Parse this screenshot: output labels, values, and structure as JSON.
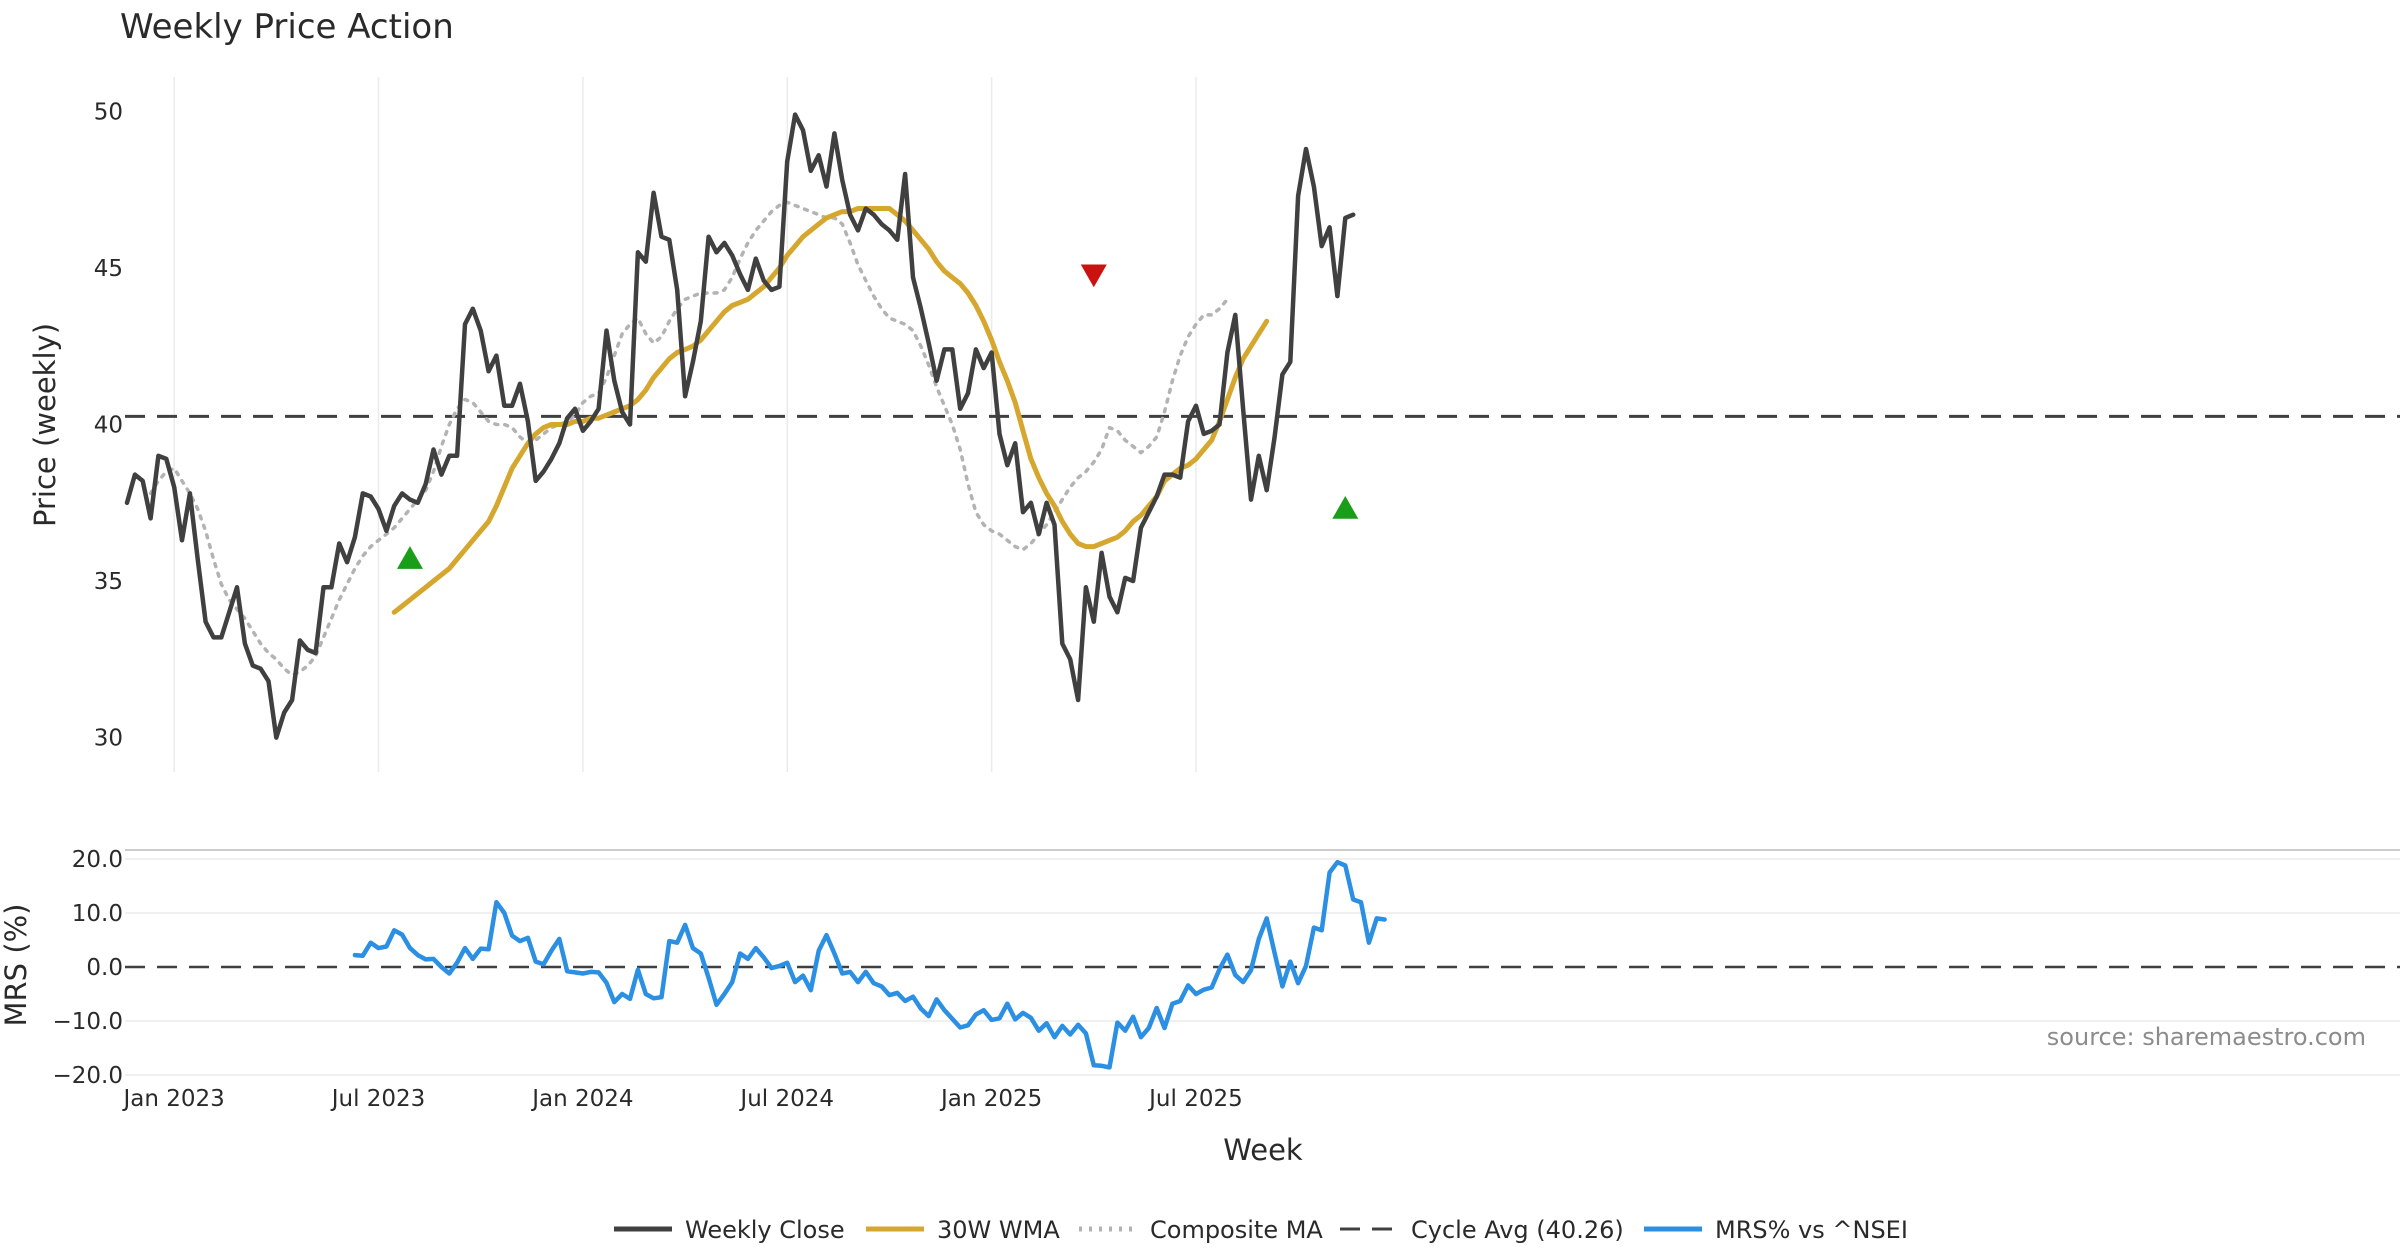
{
  "chart_data": {
    "type": "line",
    "title": "Weekly Price Action",
    "xlabel": "Week",
    "x_ticks": [
      "Jan 2023",
      "Jul 2023",
      "Jan 2024",
      "Jul 2024",
      "Jan 2025",
      "Jul 2025"
    ],
    "panels": [
      {
        "name": "price",
        "ylabel": "Price (weekly)",
        "yticks": [
          30,
          35,
          40,
          45,
          50
        ],
        "ylim": [
          28.9,
          51.1
        ],
        "series": [
          {
            "name": "Weekly Close",
            "color": "#404040",
            "style": "solid",
            "values": [
              37.5,
              38.4,
              38.2,
              37.0,
              39.0,
              38.9,
              38.0,
              36.3,
              37.8,
              35.7,
              33.7,
              33.2,
              33.2,
              34.0,
              34.8,
              33.0,
              32.3,
              32.2,
              31.8,
              30.0,
              30.8,
              31.2,
              33.1,
              32.8,
              32.7,
              34.8,
              34.8,
              36.2,
              35.6,
              36.4,
              37.8,
              37.7,
              37.3,
              36.6,
              37.4,
              37.8,
              37.6,
              37.5,
              38.1,
              39.2,
              38.4,
              39.0,
              39.0,
              43.2,
              43.7,
              43.0,
              41.7,
              42.2,
              40.6,
              40.6,
              41.3,
              40.1,
              38.2,
              38.5,
              38.9,
              39.4,
              40.2,
              40.5,
              39.8,
              40.1,
              40.5,
              43.0,
              41.4,
              40.4,
              40.0,
              45.5,
              45.2,
              47.4,
              46.0,
              45.9,
              44.3,
              40.9,
              42.0,
              43.3,
              46.0,
              45.5,
              45.8,
              45.4,
              44.8,
              44.3,
              45.3,
              44.6,
              44.3,
              44.4,
              48.4,
              49.9,
              49.4,
              48.1,
              48.6,
              47.6,
              49.3,
              47.8,
              46.7,
              46.2,
              46.9,
              46.7,
              46.4,
              46.2,
              45.9,
              48.0,
              44.7,
              43.7,
              42.6,
              41.4,
              42.4,
              42.4,
              40.5,
              41.0,
              42.4,
              41.8,
              42.3,
              39.7,
              38.7,
              39.4,
              37.2,
              37.5,
              36.5,
              37.5,
              36.8,
              33.0,
              32.5,
              31.2,
              34.8,
              33.7,
              35.9,
              34.5,
              34.0,
              35.1,
              35.0,
              36.7,
              37.2,
              37.7,
              38.4,
              38.4,
              38.3,
              40.1,
              40.6,
              39.7,
              39.8,
              40.0,
              42.3,
              43.5,
              40.5,
              37.6,
              39.0,
              37.9,
              39.6,
              41.6,
              42.0,
              47.3,
              48.8,
              47.6,
              45.7,
              46.3,
              44.1,
              46.6,
              46.7
            ]
          },
          {
            "name": "30W WMA",
            "color": "#d6a72e",
            "style": "solid",
            "start_index": 34,
            "values": [
              34.0,
              34.2,
              34.4,
              34.6,
              34.8,
              35.0,
              35.2,
              35.4,
              35.7,
              36.0,
              36.3,
              36.6,
              36.9,
              37.4,
              38.0,
              38.6,
              39.0,
              39.4,
              39.7,
              39.9,
              40.0,
              40.0,
              40.0,
              40.1,
              40.1,
              40.2,
              40.2,
              40.3,
              40.4,
              40.5,
              40.6,
              40.8,
              41.1,
              41.5,
              41.8,
              42.1,
              42.3,
              42.4,
              42.5,
              42.7,
              43.0,
              43.3,
              43.6,
              43.8,
              43.9,
              44.0,
              44.2,
              44.4,
              44.7,
              45.0,
              45.4,
              45.7,
              46.0,
              46.2,
              46.4,
              46.6,
              46.7,
              46.8,
              46.8,
              46.9,
              46.9,
              46.9,
              46.9,
              46.9,
              46.7,
              46.5,
              46.2,
              45.9,
              45.6,
              45.2,
              44.9,
              44.7,
              44.5,
              44.2,
              43.8,
              43.3,
              42.7,
              42.0,
              41.4,
              40.7,
              39.8,
              38.9,
              38.3,
              37.8,
              37.4,
              36.9,
              36.5,
              36.2,
              36.1,
              36.1,
              36.2,
              36.3,
              36.4,
              36.6,
              36.9,
              37.1,
              37.4,
              37.7,
              38.2,
              38.4,
              38.6,
              38.7,
              38.9,
              39.2,
              39.5,
              40.1,
              40.8,
              41.5,
              42.1,
              42.5,
              42.9,
              43.3
            ]
          },
          {
            "name": "Composite MA",
            "color": "#b3b3b3",
            "style": "dotted",
            "start_index": 3,
            "values": [
              37.8,
              38.2,
              38.5,
              38.6,
              38.2,
              37.8,
              37.3,
              36.6,
              35.7,
              34.9,
              34.4,
              34.1,
              33.8,
              33.4,
              33.0,
              32.7,
              32.5,
              32.2,
              32.0,
              32.1,
              32.3,
              32.6,
              33.2,
              33.8,
              34.4,
              34.9,
              35.4,
              35.8,
              36.1,
              36.3,
              36.5,
              36.7,
              37.0,
              37.3,
              37.6,
              37.9,
              38.5,
              39.3,
              40.0,
              40.5,
              40.8,
              40.7,
              40.4,
              40.1,
              40.0,
              40.0,
              39.9,
              39.6,
              39.4,
              39.5,
              39.7,
              39.9,
              40.0,
              40.1,
              40.3,
              40.7,
              40.9,
              41.0,
              41.5,
              42.2,
              42.9,
              43.2,
              43.4,
              42.9,
              42.6,
              42.8,
              43.3,
              43.7,
              44.0,
              44.1,
              44.2,
              44.2,
              44.2,
              44.3,
              44.7,
              45.3,
              45.8,
              46.2,
              46.5,
              46.8,
              47.0,
              47.1,
              47.0,
              46.9,
              46.8,
              46.7,
              46.6,
              46.6,
              46.4,
              45.8,
              45.1,
              44.6,
              44.1,
              43.7,
              43.4,
              43.3,
              43.2,
              43.0,
              42.5,
              41.9,
              41.2,
              40.6,
              40.0,
              39.2,
              38.1,
              37.2,
              36.8,
              36.6,
              36.5,
              36.3,
              36.1,
              36.0,
              36.2,
              36.5,
              36.8,
              37.2,
              37.6,
              38.0,
              38.3,
              38.5,
              38.8,
              39.2,
              39.9,
              39.8,
              39.5,
              39.3,
              39.1,
              39.3,
              39.6,
              40.4,
              41.4,
              42.2,
              42.8,
              43.2,
              43.5,
              43.5,
              43.7,
              44.0
            ]
          }
        ],
        "reference_lines": [
          {
            "name": "Cycle Avg (40.26)",
            "value": 40.26,
            "color": "#404040",
            "style": "dashed"
          }
        ],
        "markers": [
          {
            "type": "buy",
            "shape": "triangle-up",
            "color": "#1a9e1a",
            "index": 36,
            "value": 35.7
          },
          {
            "type": "sell",
            "shape": "triangle-down",
            "color": "#cc1111",
            "index": 123,
            "value": 44.8
          },
          {
            "type": "buy",
            "shape": "triangle-up",
            "color": "#1a9e1a",
            "index": 155,
            "value": 37.3
          }
        ]
      },
      {
        "name": "mrs",
        "ylabel": "MRS (%)",
        "yticks": [
          20.0,
          10.0,
          0.0,
          -10.0,
          -20.0
        ],
        "ytick_labels": [
          "20.0",
          "10.0",
          "0.0",
          "−10.0",
          "−20.0"
        ],
        "ylim": [
          -20.0,
          20.0
        ],
        "reference_value": 0,
        "series": [
          {
            "name": "MRS% vs ^NSEI",
            "color": "#2b8fe3",
            "style": "solid",
            "start_index": 29,
            "values": [
              2.2,
              2.1,
              4.5,
              3.5,
              3.8,
              6.8,
              6.0,
              3.5,
              2.2,
              1.4,
              1.5,
              0.0,
              -1.2,
              0.8,
              3.5,
              1.5,
              3.4,
              3.3,
              12.0,
              10.0,
              5.8,
              4.8,
              5.4,
              1.0,
              0.5,
              3.0,
              5.2,
              -0.8,
              -1.0,
              -1.2,
              -0.9,
              -1.0,
              -2.9,
              -6.5,
              -5.0,
              -5.9,
              -0.5,
              -5.0,
              -5.8,
              -5.6,
              4.8,
              4.5,
              7.8,
              3.5,
              2.5,
              -2.0,
              -7.0,
              -5.0,
              -2.8,
              2.5,
              1.5,
              3.5,
              1.8,
              -0.2,
              0.2,
              0.8,
              -2.8,
              -1.6,
              -4.3,
              3.0,
              5.9,
              2.5,
              -1.2,
              -0.9,
              -2.8,
              -0.9,
              -3.0,
              -3.6,
              -5.2,
              -4.8,
              -6.3,
              -5.5,
              -7.7,
              -9.1,
              -6.0,
              -8.0,
              -9.6,
              -11.2,
              -10.8,
              -8.8,
              -8.0,
              -9.8,
              -9.5,
              -6.8,
              -9.7,
              -8.5,
              -9.4,
              -11.8,
              -10.4,
              -13.0,
              -10.9,
              -12.5,
              -10.7,
              -12.3,
              -18.2,
              -18.3,
              -18.6,
              -10.3,
              -11.8,
              -9.2,
              -13.0,
              -11.3,
              -7.6,
              -11.3,
              -6.8,
              -6.3,
              -3.4,
              -5.0,
              -4.2,
              -3.8,
              -0.4,
              2.3,
              -1.5,
              -2.8,
              -0.6,
              5.2,
              9.0,
              2.6,
              -3.6,
              1.0,
              -3.0,
              0.2,
              7.3,
              6.8,
              17.5,
              19.4,
              18.8,
              12.5,
              12.0,
              4.5,
              9.0,
              8.8
            ]
          }
        ]
      }
    ],
    "legend": {
      "position": "bottom-center",
      "entries": [
        {
          "label": "Weekly Close",
          "color": "#404040",
          "style": "solid"
        },
        {
          "label": "30W WMA",
          "color": "#d6a72e",
          "style": "solid"
        },
        {
          "label": "Composite MA",
          "color": "#b3b3b3",
          "style": "dotted"
        },
        {
          "label": "Cycle Avg (40.26)",
          "color": "#404040",
          "style": "dashed"
        },
        {
          "label": "MRS% vs ^NSEI",
          "color": "#2b8fe3",
          "style": "solid"
        }
      ]
    },
    "annotation": "source: sharemaestro.com"
  }
}
